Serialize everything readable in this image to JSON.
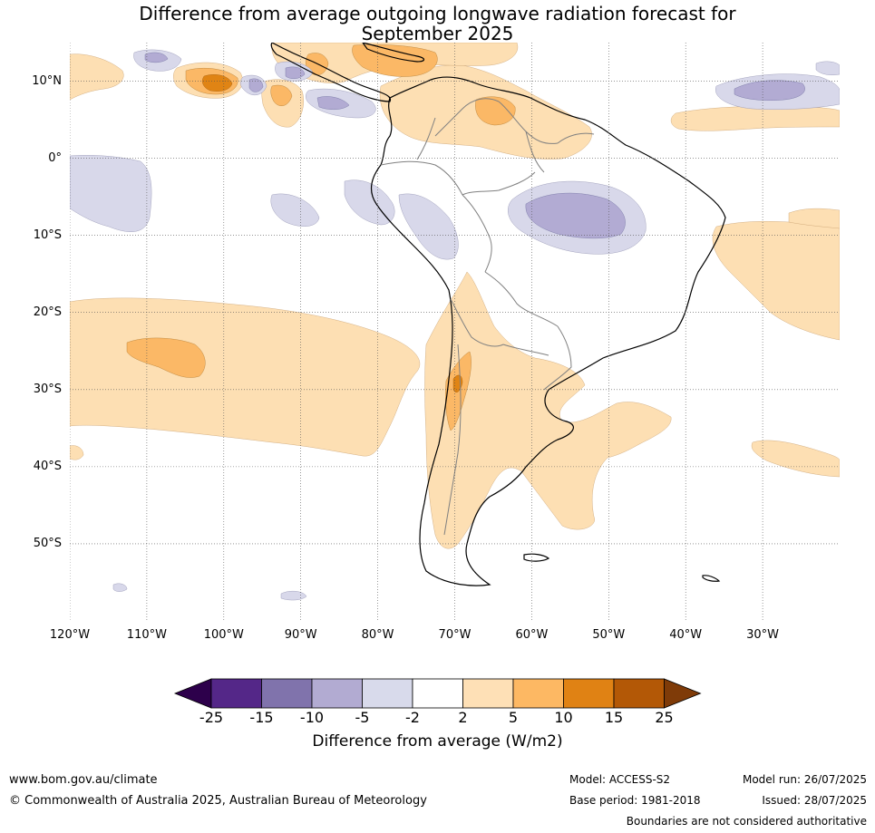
{
  "title": {
    "line1": "Difference from average outgoing longwave radiation forecast for",
    "line2": "September 2025"
  },
  "map": {
    "lon_range": [
      -120,
      -20
    ],
    "lat_range": [
      -60,
      15
    ],
    "lat_labels": [
      "10°N",
      "0°",
      "10°S",
      "20°S",
      "30°S",
      "40°S",
      "50°S"
    ],
    "lat_values": [
      10,
      0,
      -10,
      -20,
      -30,
      -40,
      -50
    ],
    "lon_labels": [
      "120°W",
      "110°W",
      "100°W",
      "90°W",
      "80°W",
      "70°W",
      "60°W",
      "50°W",
      "40°W",
      "30°W"
    ],
    "lon_values": [
      -120,
      -110,
      -100,
      -90,
      -80,
      -70,
      -60,
      -50,
      -40,
      -30
    ],
    "grid": true,
    "colors": {
      "pos_2_5": "#fddfb3",
      "pos_5_10": "#fbb866",
      "pos_10_15": "#e08414",
      "neg_2_5": "#d8d8ea",
      "neg_5_10": "#b2abd3",
      "ocean": "#ffffff",
      "coast": "#000000",
      "borders": "#808080"
    }
  },
  "colorbar": {
    "ticks": [
      "-25",
      "-15",
      "-10",
      "-5",
      "-2",
      "2",
      "5",
      "10",
      "15",
      "25"
    ],
    "colors": [
      "#2d004b",
      "#542788",
      "#8073ac",
      "#b2abd2",
      "#d8daeb",
      "#ffffff",
      "#fee0b6",
      "#fdb863",
      "#e08214",
      "#b35806",
      "#7f3b08"
    ],
    "label": "Difference from average (W/m2)"
  },
  "footer": {
    "website": "www.bom.gov.au/climate",
    "copyright": "© Commonwealth of Australia 2025, Australian Bureau of Meteorology",
    "model": "Model: ACCESS-S2",
    "base_period": "Base period: 1981-2018",
    "model_run": "Model run: 26/07/2025",
    "issued": "Issued: 28/07/2025",
    "disclaimer": "Boundaries are not considered authoritative"
  }
}
